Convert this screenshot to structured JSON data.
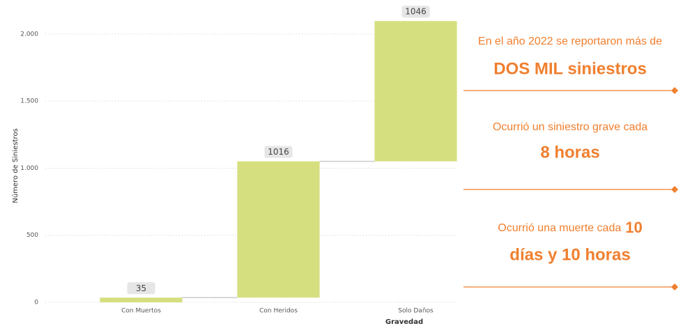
{
  "chart_data": {
    "type": "waterfall",
    "categories": [
      "Con Muertos",
      "Con Heridos",
      "Solo Daños"
    ],
    "values": [
      35,
      1016,
      1046
    ],
    "color": "#d6df7f",
    "xlabel": "Gravedad",
    "ylabel": "Número de Siniestros",
    "ylim": [
      0,
      2150
    ],
    "yticks": [
      0,
      500,
      {
        "value": 1000,
        "label": "1.000"
      },
      {
        "value": 1500,
        "label": "1.500"
      },
      {
        "value": 2000,
        "label": "2.000"
      }
    ],
    "grid": true,
    "annotations": [
      {
        "line1": "En el año 2022 se reportaron más de",
        "line2": "DOS MIL siniestros"
      },
      {
        "line1": "Ocurrió un siniestro grave cada",
        "line2": "8 horas"
      },
      {
        "line1": "Ocurrió una muerte cada",
        "line1_bold": "10",
        "line2": "días y 10 horas"
      }
    ],
    "annotation_color": "#f07f2e"
  }
}
